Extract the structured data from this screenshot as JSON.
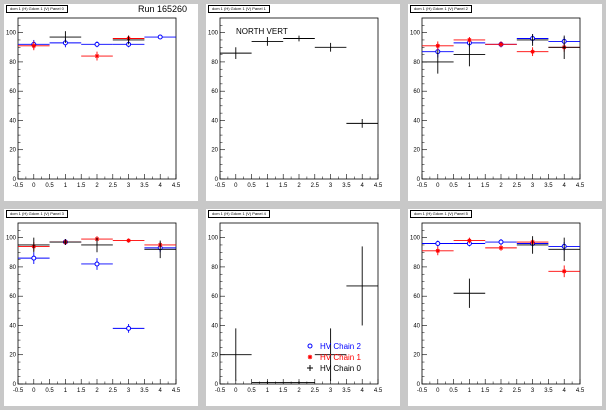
{
  "header": {
    "run_label": "Run 165260"
  },
  "colors": {
    "chain2": "#0000ff",
    "chain1": "#ff0000",
    "chain0": "#000000"
  },
  "legend": [
    {
      "label": "HV Chain 2",
      "marker": "circle",
      "color": "#0000ff"
    },
    {
      "label": "HV Chain 1",
      "marker": "star",
      "color": "#ff0000"
    },
    {
      "label": "HV Chain 0",
      "marker": "cross",
      "color": "#000000"
    }
  ],
  "chart_data": [
    {
      "type": "scatter",
      "panel_title": "dcm 1 (H) Gdcm 1 (V) Panel 0",
      "annotation": "",
      "xlim": [
        -0.5,
        4.5
      ],
      "ylim": [
        0,
        110
      ],
      "xticks": [
        "-0.5",
        "0",
        "0.5",
        "1",
        "1.5",
        "2",
        "2.5",
        "3",
        "3.5",
        "4",
        "4.5"
      ],
      "yticks": [
        "0",
        "20",
        "40",
        "60",
        "80",
        "100"
      ],
      "series": [
        {
          "color": "#0000ff",
          "marker": "circle",
          "points": [
            {
              "x": 0,
              "y": 92,
              "ex": 0.5,
              "ey": 3
            },
            {
              "x": 1,
              "y": 93,
              "ex": 0.5,
              "ey": 3
            },
            {
              "x": 2,
              "y": 92,
              "ex": 0.5,
              "ey": 2
            },
            {
              "x": 3,
              "y": 92,
              "ex": 0.5,
              "ey": 2
            },
            {
              "x": 4,
              "y": 97,
              "ex": 0.5,
              "ey": 1
            }
          ]
        },
        {
          "color": "#ff0000",
          "marker": "star",
          "points": [
            {
              "x": 0,
              "y": 91,
              "ex": 0.5,
              "ey": 3
            },
            {
              "x": 2,
              "y": 84,
              "ex": 0.5,
              "ey": 3
            },
            {
              "x": 3,
              "y": 96,
              "ex": 0.5,
              "ey": 2
            }
          ]
        },
        {
          "color": "#000000",
          "marker": "cross",
          "points": [
            {
              "x": 1,
              "y": 97,
              "ex": 0.5,
              "ey": 4
            },
            {
              "x": 3,
              "y": 95,
              "ex": 0.5,
              "ey": 3
            }
          ]
        }
      ]
    },
    {
      "type": "scatter",
      "panel_title": "dcm 1 (H) Gdcm 1 (V) Panel 1",
      "annotation": "NORTH VERT",
      "xlim": [
        -0.5,
        4.5
      ],
      "ylim": [
        0,
        110
      ],
      "xticks": [
        "-0.5",
        "0",
        "0.5",
        "1",
        "1.5",
        "2",
        "2.5",
        "3",
        "3.5",
        "4",
        "4.5"
      ],
      "yticks": [
        "0",
        "20",
        "40",
        "60",
        "80",
        "100"
      ],
      "series": [
        {
          "color": "#000000",
          "marker": "cross",
          "points": [
            {
              "x": 0,
              "y": 86,
              "ex": 0.5,
              "ey": 4
            },
            {
              "x": 1,
              "y": 94,
              "ex": 0.5,
              "ey": 3
            },
            {
              "x": 2,
              "y": 96,
              "ex": 0.5,
              "ey": 2
            },
            {
              "x": 3,
              "y": 90,
              "ex": 0.5,
              "ey": 3
            },
            {
              "x": 4,
              "y": 38,
              "ex": 0.5,
              "ey": 3
            }
          ]
        }
      ]
    },
    {
      "type": "scatter",
      "panel_title": "dcm 1 (H) Gdcm 1 (V) Panel 2",
      "annotation": "",
      "xlim": [
        -0.5,
        4.5
      ],
      "ylim": [
        0,
        110
      ],
      "xticks": [
        "-0.5",
        "0",
        "0.5",
        "1",
        "1.5",
        "2",
        "2.5",
        "3",
        "3.5",
        "4",
        "4.5"
      ],
      "yticks": [
        "0",
        "20",
        "40",
        "60",
        "80",
        "100"
      ],
      "series": [
        {
          "color": "#0000ff",
          "marker": "circle",
          "points": [
            {
              "x": 0,
              "y": 87,
              "ex": 0.5,
              "ey": 4
            },
            {
              "x": 1,
              "y": 93,
              "ex": 0.5,
              "ey": 3
            },
            {
              "x": 2,
              "y": 92,
              "ex": 0.5,
              "ey": 2
            },
            {
              "x": 3,
              "y": 96,
              "ex": 0.5,
              "ey": 3
            },
            {
              "x": 4,
              "y": 94,
              "ex": 0.5,
              "ey": 3
            }
          ]
        },
        {
          "color": "#ff0000",
          "marker": "star",
          "points": [
            {
              "x": 0,
              "y": 91,
              "ex": 0.5,
              "ey": 3
            },
            {
              "x": 1,
              "y": 95,
              "ex": 0.5,
              "ey": 2
            },
            {
              "x": 2,
              "y": 92,
              "ex": 0.5,
              "ey": 2
            },
            {
              "x": 3,
              "y": 87,
              "ex": 0.5,
              "ey": 3
            },
            {
              "x": 4,
              "y": 90,
              "ex": 0.5,
              "ey": 3
            }
          ]
        },
        {
          "color": "#000000",
          "marker": "cross",
          "points": [
            {
              "x": 0,
              "y": 80,
              "ex": 0.5,
              "ey": 8
            },
            {
              "x": 1,
              "y": 85,
              "ex": 0.5,
              "ey": 8
            },
            {
              "x": 3,
              "y": 95,
              "ex": 0.5,
              "ey": 4
            },
            {
              "x": 4,
              "y": 90,
              "ex": 0.5,
              "ey": 8
            }
          ]
        }
      ]
    },
    {
      "type": "scatter",
      "panel_title": "dcm 1 (H) Gdcm 1 (V) Panel 3",
      "annotation": "",
      "xlim": [
        -0.5,
        4.5
      ],
      "ylim": [
        0,
        110
      ],
      "xticks": [
        "-0.5",
        "0",
        "0.5",
        "1",
        "1.5",
        "2",
        "2.5",
        "3",
        "3.5",
        "4",
        "4.5"
      ],
      "yticks": [
        "0",
        "20",
        "40",
        "60",
        "80",
        "100"
      ],
      "series": [
        {
          "color": "#0000ff",
          "marker": "circle",
          "points": [
            {
              "x": 0,
              "y": 86,
              "ex": 0.5,
              "ey": 4
            },
            {
              "x": 1,
              "y": 97,
              "ex": 0.5,
              "ey": 2
            },
            {
              "x": 2,
              "y": 82,
              "ex": 0.5,
              "ey": 4
            },
            {
              "x": 3,
              "y": 38,
              "ex": 0.5,
              "ey": 3
            },
            {
              "x": 4,
              "y": 93,
              "ex": 0.5,
              "ey": 3
            }
          ]
        },
        {
          "color": "#ff0000",
          "marker": "star",
          "points": [
            {
              "x": 0,
              "y": 94,
              "ex": 0.5,
              "ey": 3
            },
            {
              "x": 1,
              "y": 97,
              "ex": 0.5,
              "ey": 2
            },
            {
              "x": 2,
              "y": 99,
              "ex": 0.5,
              "ey": 2
            },
            {
              "x": 3,
              "y": 98,
              "ex": 0.5,
              "ey": 1
            },
            {
              "x": 4,
              "y": 95,
              "ex": 0.5,
              "ey": 2
            }
          ]
        },
        {
          "color": "#000000",
          "marker": "cross",
          "points": [
            {
              "x": 0,
              "y": 95,
              "ex": 0.5,
              "ey": 5
            },
            {
              "x": 1,
              "y": 97,
              "ex": 0.5,
              "ey": 2
            },
            {
              "x": 2,
              "y": 95,
              "ex": 0.5,
              "ey": 5
            },
            {
              "x": 4,
              "y": 92,
              "ex": 0.5,
              "ey": 6
            }
          ]
        }
      ]
    },
    {
      "type": "scatter",
      "panel_title": "dcm 1 (H) Gdcm 1 (V) Panel 4",
      "annotation": "",
      "xlim": [
        -0.5,
        4.5
      ],
      "ylim": [
        0,
        110
      ],
      "xticks": [
        "-0.5",
        "0",
        "0.5",
        "1",
        "1.5",
        "2",
        "2.5",
        "3",
        "3.5",
        "4",
        "4.5"
      ],
      "yticks": [
        "0",
        "20",
        "40",
        "60",
        "80",
        "100"
      ],
      "series": [
        {
          "color": "#000000",
          "marker": "cross",
          "points": [
            {
              "x": 0,
              "y": 20,
              "ex": 0.5,
              "ey": 18
            },
            {
              "x": 1,
              "y": 1,
              "ex": 0.5,
              "ey": 1
            },
            {
              "x": 2,
              "y": 1,
              "ex": 0.5,
              "ey": 1
            },
            {
              "x": 3,
              "y": 20,
              "ex": 0.5,
              "ey": 18
            },
            {
              "x": 4,
              "y": 67,
              "ex": 0.5,
              "ey": 27
            }
          ]
        }
      ]
    },
    {
      "type": "scatter",
      "panel_title": "dcm 1 (H) Gdcm 1 (V) Panel 5",
      "annotation": "",
      "xlim": [
        -0.5,
        4.5
      ],
      "ylim": [
        0,
        110
      ],
      "xticks": [
        "-0.5",
        "0",
        "0.5",
        "1",
        "1.5",
        "2",
        "2.5",
        "3",
        "3.5",
        "4",
        "4.5"
      ],
      "yticks": [
        "0",
        "20",
        "40",
        "60",
        "80",
        "100"
      ],
      "series": [
        {
          "color": "#0000ff",
          "marker": "circle",
          "points": [
            {
              "x": 0,
              "y": 96,
              "ex": 0.5,
              "ey": 2
            },
            {
              "x": 1,
              "y": 96,
              "ex": 0.5,
              "ey": 2
            },
            {
              "x": 2,
              "y": 97,
              "ex": 0.5,
              "ey": 2
            },
            {
              "x": 3,
              "y": 96,
              "ex": 0.5,
              "ey": 2
            },
            {
              "x": 4,
              "y": 94,
              "ex": 0.5,
              "ey": 3
            }
          ]
        },
        {
          "color": "#ff0000",
          "marker": "star",
          "points": [
            {
              "x": 0,
              "y": 91,
              "ex": 0.5,
              "ey": 3
            },
            {
              "x": 1,
              "y": 98,
              "ex": 0.5,
              "ey": 2
            },
            {
              "x": 2,
              "y": 93,
              "ex": 0.5,
              "ey": 2
            },
            {
              "x": 3,
              "y": 97,
              "ex": 0.5,
              "ey": 2
            },
            {
              "x": 4,
              "y": 77,
              "ex": 0.5,
              "ey": 4
            }
          ]
        },
        {
          "color": "#000000",
          "marker": "cross",
          "points": [
            {
              "x": 1,
              "y": 62,
              "ex": 0.5,
              "ey": 10
            },
            {
              "x": 3,
              "y": 95,
              "ex": 0.5,
              "ey": 6
            },
            {
              "x": 4,
              "y": 92,
              "ex": 0.5,
              "ey": 8
            }
          ]
        }
      ]
    }
  ]
}
